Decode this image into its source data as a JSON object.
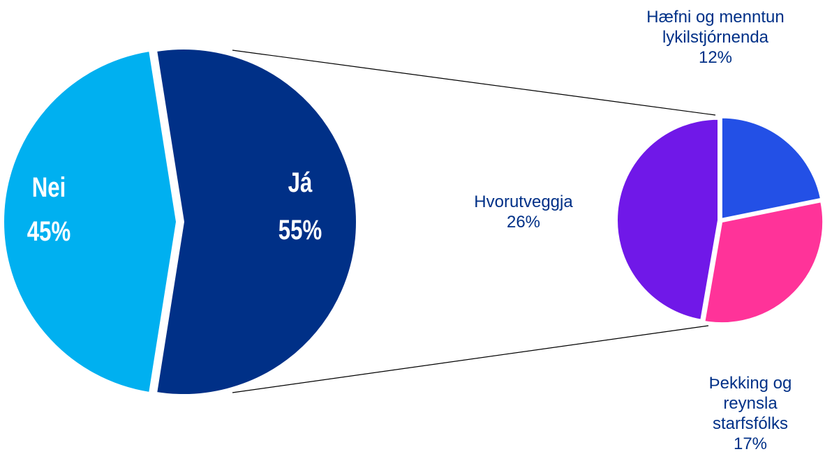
{
  "chart_data": [
    {
      "type": "pie",
      "categories": [
        "Nei",
        "Já"
      ],
      "values": [
        45,
        55
      ],
      "value_labels": [
        "45%",
        "55%"
      ],
      "colors": [
        "#00b0f0",
        "#003087"
      ]
    },
    {
      "type": "pie",
      "categories": [
        "Hæfni og menntun lykilstjórnenda",
        "Þekking og reynsla starfsfólks",
        "Hvorutveggja"
      ],
      "values": [
        12,
        17,
        26
      ],
      "value_labels": [
        "12%",
        "17%",
        "26%"
      ],
      "colors": [
        "#2350e6",
        "#ff3399",
        "#7018e8"
      ]
    }
  ]
}
